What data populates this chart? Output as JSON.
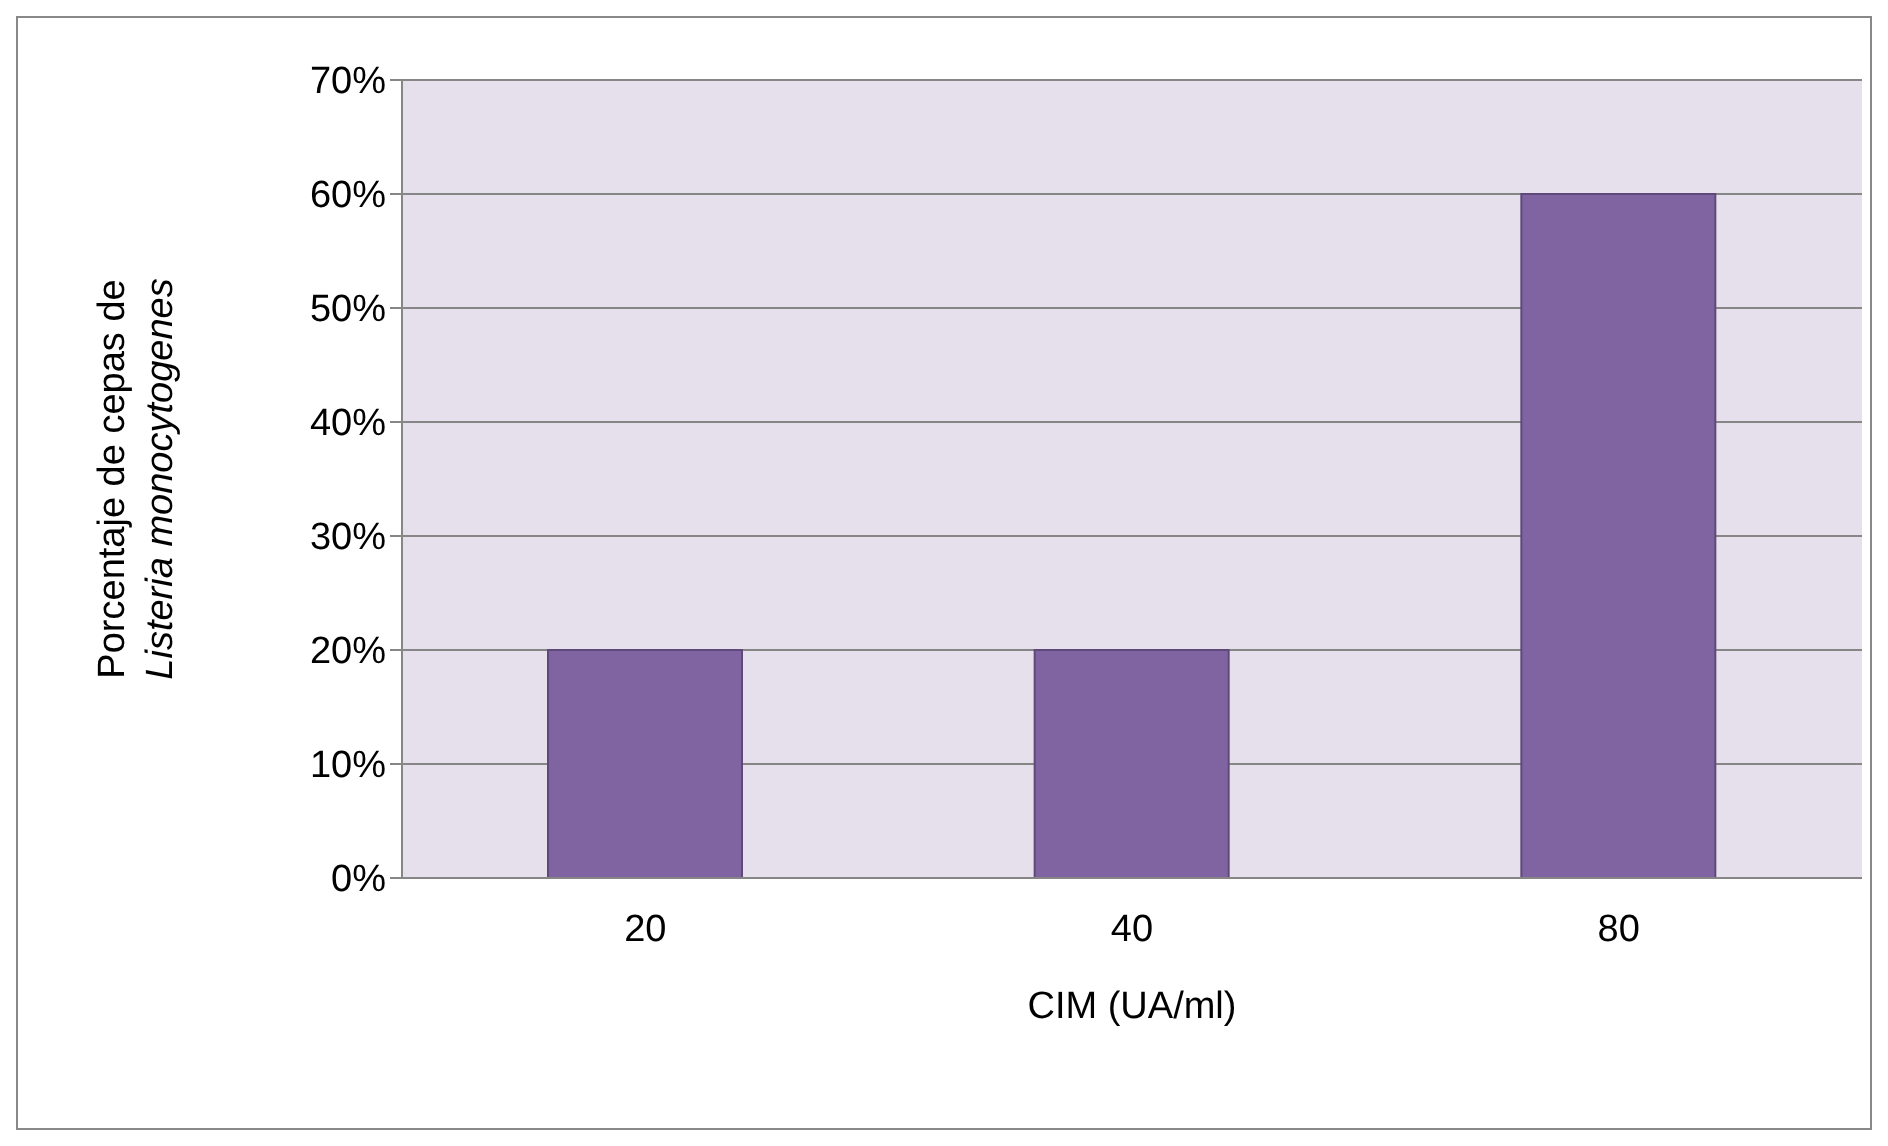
{
  "chart_data": {
    "type": "bar",
    "categories": [
      "20",
      "40",
      "80"
    ],
    "values": [
      20,
      20,
      60
    ],
    "color": "#8064a2",
    "xlabel": "CIM (UA/ml)",
    "ylabel": "Porcentaje de cepas de Listeria monocytogenes",
    "ylim": [
      0,
      70
    ],
    "yticks": [
      {
        "value": 0,
        "label": "0%"
      },
      {
        "value": 10,
        "label": "10%"
      },
      {
        "value": 20,
        "label": "20%"
      },
      {
        "value": 30,
        "label": "30%"
      },
      {
        "value": 40,
        "label": "40%"
      },
      {
        "value": 50,
        "label": "50%"
      },
      {
        "value": 60,
        "label": "60%"
      },
      {
        "value": 70,
        "label": "70%"
      }
    ],
    "grid": "y"
  }
}
